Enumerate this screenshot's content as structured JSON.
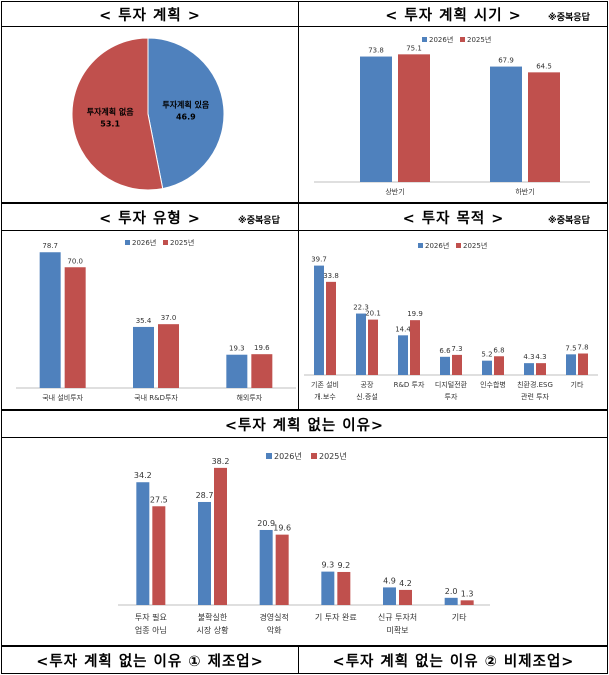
{
  "sections": {
    "plan": "< 투자 계획 >",
    "timing": "< 투자 계획 시기 >",
    "type": "< 투자 유형 >",
    "purpose": "< 투자 목적 >",
    "reasons": "<투자 계획 없는 이유>",
    "reasons_mfg": "<투자 계획 없는 이유 ① 제조업>",
    "reasons_nonmfg": "<투자 계획 없는 이유 ② 비제조업>"
  },
  "multi_note": "※중복응답",
  "colors": {
    "s2026": "#4F81BD",
    "s2025": "#C0504D"
  },
  "chart_data": [
    {
      "type": "pie",
      "title": "투자 계획",
      "slices": [
        {
          "label": "투자계획 있음",
          "value": 46.9,
          "value_label": "46.9",
          "color": "#4F81BD"
        },
        {
          "label": "투자계획 없음",
          "value": 53.1,
          "value_label": "53.1",
          "color": "#C0504D"
        }
      ]
    },
    {
      "type": "bar",
      "title": "투자 계획 시기",
      "categories": [
        [
          "상반기"
        ],
        [
          "하반기"
        ]
      ],
      "series": [
        {
          "name": "2026년",
          "values": [
            73.8,
            67.9
          ],
          "labels": [
            "73.8",
            "67.9"
          ]
        },
        {
          "name": "2025년",
          "values": [
            75.1,
            64.5
          ],
          "labels": [
            "75.1",
            "64.5"
          ]
        }
      ]
    },
    {
      "type": "bar",
      "title": "투자 유형",
      "categories": [
        [
          "국내 설비투자"
        ],
        [
          "국내 R&D투자"
        ],
        [
          "해외투자"
        ]
      ],
      "series": [
        {
          "name": "2026년",
          "values": [
            78.7,
            35.4,
            19.3
          ],
          "labels": [
            "78.7",
            "35.4",
            "19.3"
          ]
        },
        {
          "name": "2025년",
          "values": [
            70.0,
            37.0,
            19.6
          ],
          "labels": [
            "70.0",
            "37.0",
            "19.6"
          ]
        }
      ]
    },
    {
      "type": "bar",
      "title": "투자 목적",
      "categories": [
        [
          "기존 설비",
          "개.보수"
        ],
        [
          "공장",
          "신.증설"
        ],
        [
          "R&D 투자"
        ],
        [
          "디지털전환",
          "투자"
        ],
        [
          "인수합병"
        ],
        [
          "친환경.ESG",
          "관련 투자"
        ],
        [
          "기타"
        ]
      ],
      "series": [
        {
          "name": "2026년",
          "values": [
            39.7,
            22.3,
            14.4,
            6.6,
            5.2,
            4.3,
            7.5
          ],
          "labels": [
            "39.7",
            "22.3",
            "14.4",
            "6.6",
            "5.2",
            "4.3",
            "7.5"
          ]
        },
        {
          "name": "2025년",
          "values": [
            33.8,
            20.1,
            19.9,
            7.3,
            6.8,
            4.3,
            7.8
          ],
          "labels": [
            "33.8",
            "20.1",
            "19.9",
            "7.3",
            "6.8",
            "4.3",
            "7.8"
          ]
        }
      ]
    },
    {
      "type": "bar",
      "title": "투자 계획 없는 이유",
      "categories": [
        [
          "투자 필요",
          "업종 아님"
        ],
        [
          "불확실한",
          "시장 상황"
        ],
        [
          "경영실적",
          "악화"
        ],
        [
          "기 투자 완료"
        ],
        [
          "신규 투자처",
          "미확보"
        ],
        [
          "기타"
        ]
      ],
      "series": [
        {
          "name": "2026년",
          "values": [
            34.2,
            28.7,
            20.9,
            9.3,
            4.9,
            2.0
          ],
          "labels": [
            "34.2",
            "28.7",
            "20.9",
            "9.3",
            "4.9",
            "2.0"
          ]
        },
        {
          "name": "2025년",
          "values": [
            27.5,
            38.2,
            19.6,
            9.2,
            4.2,
            1.3
          ],
          "labels": [
            "27.5",
            "38.2",
            "19.6",
            "9.2",
            "4.2",
            "1.3"
          ]
        }
      ]
    }
  ]
}
